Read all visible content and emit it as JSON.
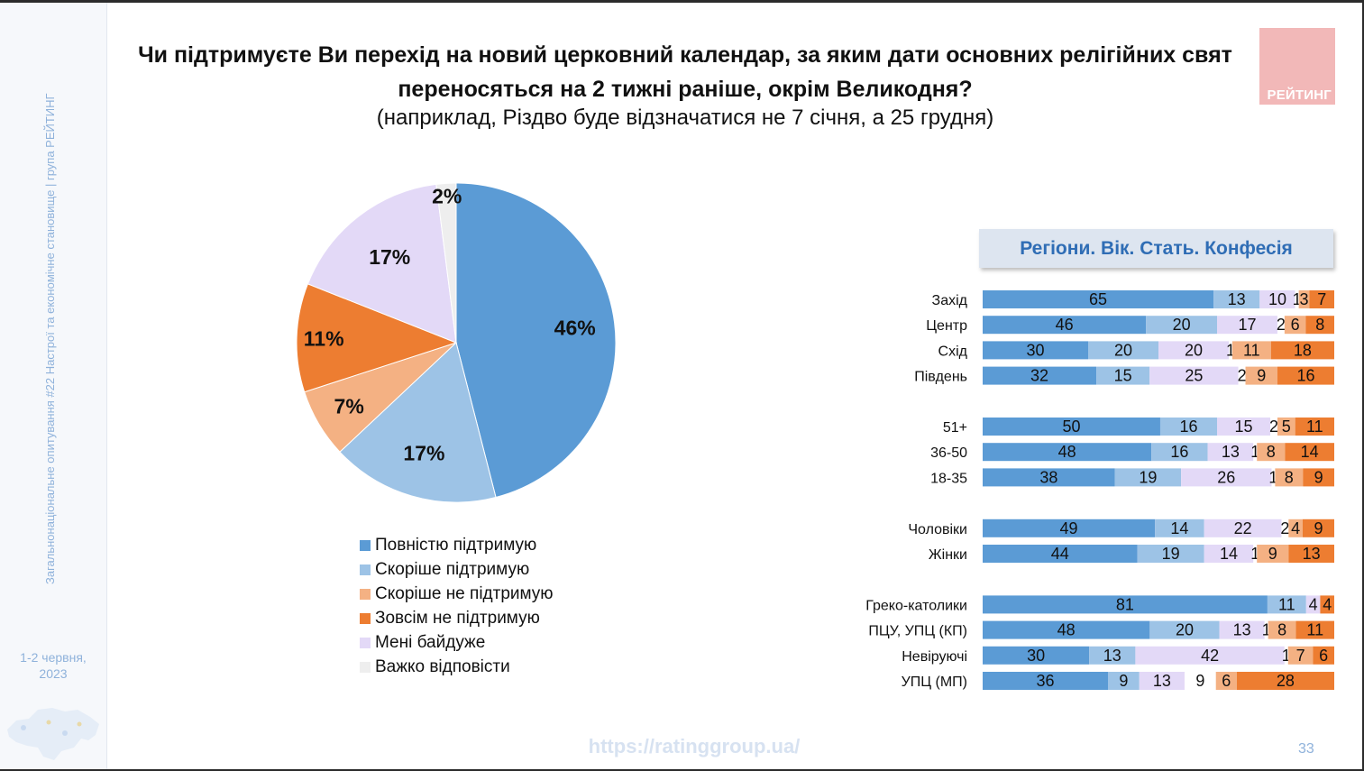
{
  "page": {
    "title_line1": "Чи підтримуєте Ви перехід на новий церковний календар, за яким дати основних релігійних свят",
    "title_line2": "переносяться на 2 тижні раніше, окрім Великодня?",
    "subtitle": "(наприклад, Різдво буде відзначатися не 7 січня, а 25 грудня)",
    "logo_text": "РЕЙТИНГ",
    "sidebar_text": "Загальнонаціональне опитування #22 Настрої та економічне становище | група РЕЙТИНГ",
    "date_line1": "1-2 червня,",
    "date_line2": "2023",
    "url": "https://ratinggroup.ua/",
    "page_number": "33",
    "panel_title": "Регіони. Вік. Стать. Конфесія"
  },
  "colors": {
    "full_support": "#5b9bd5",
    "rather_support": "#9dc3e6",
    "rather_not": "#f4b183",
    "not_at_all": "#ed7d31",
    "indifferent": "#e3d9f7",
    "hard_to_say": "#eeeeee"
  },
  "chart_data": [
    {
      "type": "pie",
      "title": "",
      "slices": [
        {
          "label": "Повністю підтримую",
          "value": 46,
          "display": "46%",
          "color": "#5b9bd5"
        },
        {
          "label": "Скоріше підтримую",
          "value": 17,
          "display": "17%",
          "color": "#9dc3e6"
        },
        {
          "label": "Скоріше не підтримую",
          "value": 7,
          "display": "7%",
          "color": "#f4b183"
        },
        {
          "label": "Зовсім не підтримую",
          "value": 11,
          "display": "11%",
          "color": "#ed7d31"
        },
        {
          "label": "Мені байдуже",
          "value": 17,
          "display": "17%",
          "color": "#e3d9f7"
        },
        {
          "label": "Важко відповісти",
          "value": 2,
          "display": "2%",
          "color": "#eeeeee"
        }
      ],
      "legend": [
        "Повністю підтримую",
        "Скоріше підтримую",
        "Скоріше не підтримую",
        "Зовсім не підтримую",
        "Мені байдуже",
        "Важко відповісти"
      ]
    },
    {
      "type": "bar",
      "orientation": "horizontal-stacked",
      "title": "Регіони. Вік. Стать. Конфесія",
      "series_order": [
        "Повністю підтримую",
        "Скоріше підтримую",
        "Мені байдуже",
        "Важко відповісти",
        "Скоріше не підтримую",
        "Зовсім не підтримую"
      ],
      "series_colors": [
        "#5b9bd5",
        "#9dc3e6",
        "#e3d9f7",
        "#ffffff",
        "#f4b183",
        "#ed7d31"
      ],
      "groups": [
        {
          "rows": [
            {
              "label": "Захід",
              "values": [
                65,
                13,
                10,
                1,
                3,
                7
              ]
            },
            {
              "label": "Центр",
              "values": [
                46,
                20,
                17,
                2,
                6,
                8
              ]
            },
            {
              "label": "Схід",
              "values": [
                30,
                20,
                20,
                1,
                11,
                18
              ]
            },
            {
              "label": "Південь",
              "values": [
                32,
                15,
                25,
                2,
                9,
                16
              ]
            }
          ]
        },
        {
          "rows": [
            {
              "label": "51+",
              "values": [
                50,
                16,
                15,
                2,
                5,
                11
              ]
            },
            {
              "label": "36-50",
              "values": [
                48,
                16,
                13,
                1,
                8,
                14
              ]
            },
            {
              "label": "18-35",
              "values": [
                38,
                19,
                26,
                1,
                8,
                9
              ]
            }
          ]
        },
        {
          "rows": [
            {
              "label": "Чоловіки",
              "values": [
                49,
                14,
                22,
                2,
                4,
                9
              ]
            },
            {
              "label": "Жінки",
              "values": [
                44,
                19,
                14,
                1,
                9,
                13
              ]
            }
          ]
        },
        {
          "rows": [
            {
              "label": "Греко-католики",
              "values": [
                81,
                11,
                4,
                0,
                0,
                4
              ]
            },
            {
              "label": "ПЦУ, УПЦ (КП)",
              "values": [
                48,
                20,
                13,
                1,
                8,
                11
              ]
            },
            {
              "label": "Невіруючі",
              "values": [
                30,
                13,
                42,
                1,
                7,
                6
              ]
            },
            {
              "label": "УПЦ (МП)",
              "values": [
                36,
                9,
                13,
                9,
                6,
                28
              ]
            }
          ]
        }
      ]
    }
  ]
}
